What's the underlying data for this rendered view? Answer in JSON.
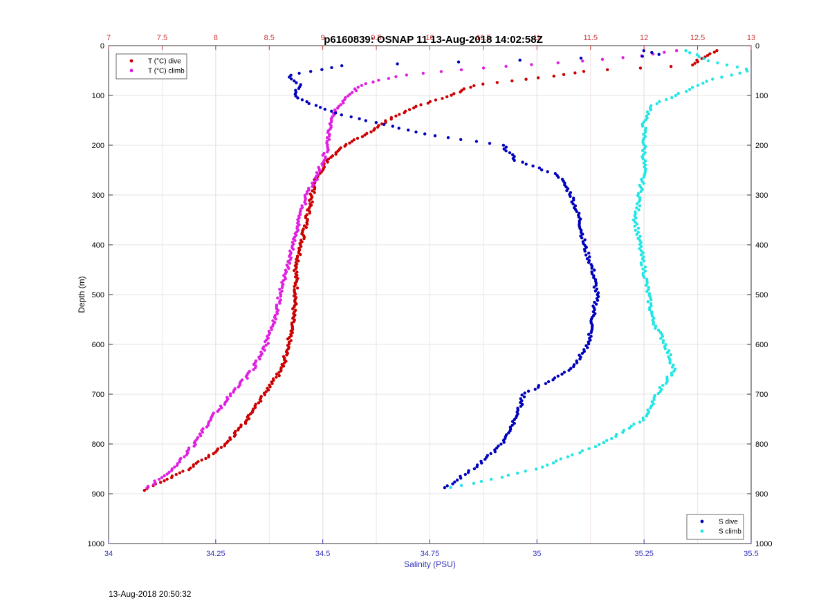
{
  "chart_data": {
    "type": "scatter",
    "title": "p6160839: OSNAP 11 13-Aug-2018 14:02:58Z",
    "ylabel": "Depth (m)",
    "xlabel_bottom": "Salinity (PSU)",
    "xlabel_top": "",
    "ylim": [
      0,
      1000
    ],
    "y_reversed": true,
    "y_ticks": [
      0,
      100,
      200,
      300,
      400,
      500,
      600,
      700,
      800,
      900,
      1000
    ],
    "x_bottom": {
      "range": [
        34,
        35.5
      ],
      "ticks": [
        34,
        34.25,
        34.5,
        34.75,
        35,
        35.25,
        35.5
      ],
      "tick_labels": [
        "34",
        "34.25",
        "34.5",
        "34.75",
        "35",
        "35.25",
        "35.5"
      ],
      "color": "#3333bb"
    },
    "x_top": {
      "range": [
        7,
        13
      ],
      "ticks": [
        7,
        7.5,
        8,
        8.5,
        9,
        9.5,
        10,
        10.5,
        11,
        11.5,
        12,
        12.5,
        13
      ],
      "tick_labels": [
        "7",
        "7.5",
        "8",
        "8.5",
        "9",
        "9.5",
        "10",
        "10.5",
        "11",
        "11.5",
        "12",
        "12.5",
        "13"
      ],
      "color": "#cc3333"
    },
    "grid": true,
    "legend_top_left": [
      {
        "name": "T (°C) dive",
        "color": "#cc0000"
      },
      {
        "name": "T (°C) climb",
        "color": "#e020e0"
      }
    ],
    "legend_bottom_right": [
      {
        "name": "S dive",
        "color": "#0000bb"
      },
      {
        "name": "S climb",
        "color": "#22e5e5"
      }
    ],
    "series": [
      {
        "name": "T (°C) dive",
        "axis": "top",
        "color": "#cc0000",
        "profile": [
          [
            10,
            12.68
          ],
          [
            20,
            12.6
          ],
          [
            30,
            12.5
          ],
          [
            40,
            12.45
          ],
          [
            50,
            11.5
          ],
          [
            60,
            11.2
          ],
          [
            70,
            10.8
          ],
          [
            80,
            10.4
          ],
          [
            100,
            10.2
          ],
          [
            120,
            9.9
          ],
          [
            150,
            9.6
          ],
          [
            180,
            9.4
          ],
          [
            200,
            9.2
          ],
          [
            230,
            9.05
          ],
          [
            260,
            8.95
          ],
          [
            300,
            8.9
          ],
          [
            350,
            8.85
          ],
          [
            400,
            8.8
          ],
          [
            450,
            8.75
          ],
          [
            500,
            8.75
          ],
          [
            550,
            8.72
          ],
          [
            600,
            8.68
          ],
          [
            650,
            8.62
          ],
          [
            700,
            8.45
          ],
          [
            750,
            8.3
          ],
          [
            800,
            8.1
          ],
          [
            850,
            7.75
          ],
          [
            880,
            7.45
          ],
          [
            895,
            7.3
          ]
        ]
      },
      {
        "name": "T (°C) climb",
        "axis": "top",
        "color": "#e020e0",
        "profile": [
          [
            10,
            12.3
          ],
          [
            20,
            12.0
          ],
          [
            30,
            11.5
          ],
          [
            40,
            10.8
          ],
          [
            50,
            10.2
          ],
          [
            60,
            9.75
          ],
          [
            70,
            9.5
          ],
          [
            80,
            9.35
          ],
          [
            100,
            9.25
          ],
          [
            120,
            9.15
          ],
          [
            150,
            9.08
          ],
          [
            200,
            9.05
          ],
          [
            250,
            8.97
          ],
          [
            270,
            8.93
          ],
          [
            300,
            8.85
          ],
          [
            350,
            8.78
          ],
          [
            400,
            8.72
          ],
          [
            450,
            8.67
          ],
          [
            500,
            8.6
          ],
          [
            550,
            8.55
          ],
          [
            600,
            8.47
          ],
          [
            650,
            8.35
          ],
          [
            700,
            8.15
          ],
          [
            750,
            7.95
          ],
          [
            800,
            7.8
          ],
          [
            850,
            7.6
          ],
          [
            890,
            7.35
          ]
        ]
      },
      {
        "name": "S dive",
        "axis": "bottom",
        "color": "#0000bb",
        "profile": [
          [
            10,
            35.25
          ],
          [
            20,
            35.3
          ],
          [
            40,
            34.55
          ],
          [
            60,
            34.42
          ],
          [
            80,
            34.45
          ],
          [
            100,
            34.43
          ],
          [
            120,
            34.48
          ],
          [
            140,
            34.55
          ],
          [
            160,
            34.65
          ],
          [
            180,
            34.75
          ],
          [
            200,
            34.92
          ],
          [
            230,
            34.95
          ],
          [
            260,
            35.05
          ],
          [
            300,
            35.08
          ],
          [
            350,
            35.1
          ],
          [
            400,
            35.11
          ],
          [
            450,
            35.13
          ],
          [
            500,
            35.14
          ],
          [
            550,
            35.13
          ],
          [
            600,
            35.12
          ],
          [
            650,
            35.08
          ],
          [
            700,
            34.97
          ],
          [
            750,
            34.95
          ],
          [
            800,
            34.92
          ],
          [
            850,
            34.85
          ],
          [
            880,
            34.8
          ],
          [
            890,
            34.78
          ]
        ]
      },
      {
        "name": "S climb",
        "axis": "bottom",
        "color": "#22e5e5",
        "profile": [
          [
            10,
            35.35
          ],
          [
            30,
            35.4
          ],
          [
            50,
            35.5
          ],
          [
            70,
            35.4
          ],
          [
            90,
            35.35
          ],
          [
            120,
            35.27
          ],
          [
            150,
            35.25
          ],
          [
            200,
            35.25
          ],
          [
            250,
            35.25
          ],
          [
            300,
            35.24
          ],
          [
            350,
            35.23
          ],
          [
            400,
            35.24
          ],
          [
            450,
            35.25
          ],
          [
            500,
            35.26
          ],
          [
            550,
            35.27
          ],
          [
            600,
            35.3
          ],
          [
            650,
            35.32
          ],
          [
            700,
            35.28
          ],
          [
            750,
            35.25
          ],
          [
            800,
            35.15
          ],
          [
            850,
            35.0
          ],
          [
            880,
            34.85
          ],
          [
            890,
            34.78
          ]
        ]
      }
    ]
  },
  "footer": {
    "timestamp": "13-Aug-2018 20:50:32"
  }
}
